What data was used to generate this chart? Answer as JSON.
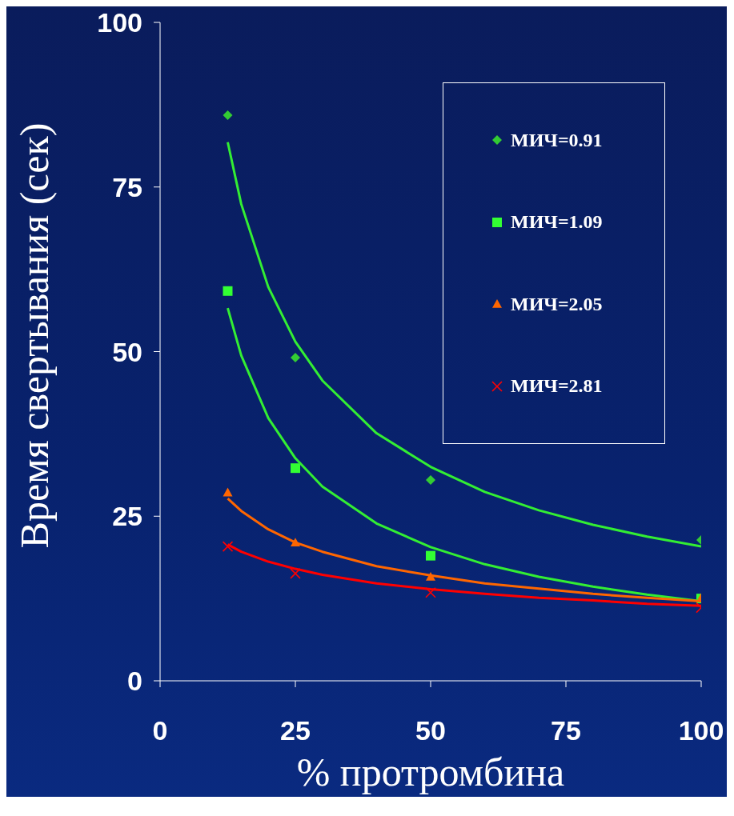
{
  "chart_data": {
    "type": "scatter",
    "xlabel": "% протромбина",
    "ylabel": "Время свертывания (сек)",
    "xlim": [
      0,
      100
    ],
    "xticks": [
      0,
      25,
      50,
      75,
      100
    ],
    "ylim": [
      0,
      100
    ],
    "yticks": [
      0,
      25,
      50,
      75,
      100
    ],
    "grid": false,
    "legend": "top right",
    "series": [
      {
        "name": "МИЧ=0.91",
        "type": "scatter",
        "marker": "diamond",
        "color": "#33cc33",
        "x": [
          12.5,
          25,
          50,
          100
        ],
        "values": [
          85.9,
          49.1,
          30.5,
          21.4
        ]
      },
      {
        "name": "МИЧ=1.09",
        "type": "scatter",
        "marker": "square",
        "color": "#33ff33",
        "x": [
          12.5,
          25,
          50,
          100
        ],
        "values": [
          59.2,
          32.3,
          19.0,
          12.5
        ]
      },
      {
        "name": "МИЧ=2.05",
        "type": "scatter",
        "marker": "triangle",
        "color": "#ff6600",
        "x": [
          12.5,
          25,
          50,
          100
        ],
        "values": [
          28.6,
          21.0,
          15.8,
          12.6
        ]
      },
      {
        "name": "МИЧ=2.81",
        "type": "scatter",
        "marker": "cross",
        "color": "#ff0000",
        "x": [
          12.5,
          25,
          50,
          100
        ],
        "values": [
          20.4,
          16.3,
          13.4,
          11.1
        ]
      },
      {
        "type": "line",
        "color": "#33ee33",
        "x": [
          12.5,
          15,
          20,
          25,
          30,
          40,
          50,
          60,
          70,
          80,
          90,
          100
        ],
        "values": [
          81.8,
          72.4,
          59.8,
          51.5,
          45.6,
          37.6,
          32.5,
          28.7,
          25.9,
          23.7,
          21.9,
          20.4
        ]
      },
      {
        "type": "line",
        "color": "#33ee33",
        "x": [
          12.5,
          15,
          20,
          25,
          30,
          40,
          50,
          60,
          70,
          80,
          90,
          100
        ],
        "values": [
          56.6,
          49.4,
          39.9,
          33.8,
          29.5,
          23.9,
          20.3,
          17.7,
          15.8,
          14.3,
          13.1,
          12.1
        ]
      },
      {
        "type": "line",
        "color": "#ff6600",
        "x": [
          12.5,
          15,
          20,
          25,
          30,
          40,
          50,
          60,
          70,
          80,
          90,
          100
        ],
        "values": [
          27.7,
          25.8,
          23.0,
          21.0,
          19.6,
          17.4,
          16.0,
          14.8,
          14.0,
          13.2,
          12.6,
          12.1
        ]
      },
      {
        "type": "line",
        "color": "#ff0000",
        "x": [
          12.5,
          15,
          20,
          25,
          30,
          40,
          50,
          60,
          70,
          80,
          90,
          100
        ],
        "values": [
          20.7,
          19.6,
          18.1,
          17.0,
          16.1,
          14.8,
          13.9,
          13.2,
          12.6,
          12.2,
          11.7,
          11.4
        ]
      }
    ]
  }
}
